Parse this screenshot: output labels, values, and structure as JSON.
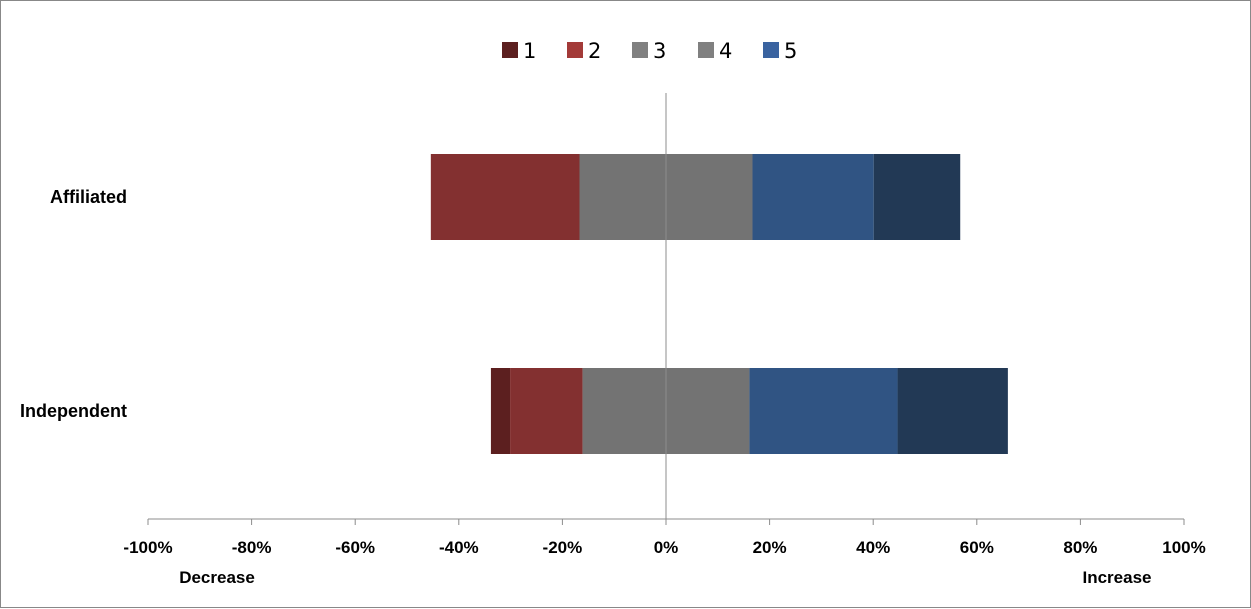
{
  "chart_data": {
    "type": "bar",
    "orientation": "horizontal",
    "stacked": "diverging",
    "categories": [
      "Affiliated",
      "Independent"
    ],
    "series": [
      {
        "name": "1",
        "color": "#5C1F1F",
        "side": "negative",
        "values": [
          0,
          3.7
        ]
      },
      {
        "name": "2",
        "color": "#833030",
        "side": "negative",
        "values": [
          28.7,
          14
        ]
      },
      {
        "name": "3",
        "color": "#737373",
        "side": "split",
        "values": [
          33.4,
          32.2
        ]
      },
      {
        "name": "4",
        "color": "#305483",
        "side": "positive",
        "values": [
          23.4,
          28.6
        ]
      },
      {
        "name": "5",
        "color": "#223955",
        "side": "positive",
        "values": [
          16.7,
          21.3
        ]
      }
    ],
    "legend_colors": [
      "#5C1F1F",
      "#A33A38",
      "#808080",
      "#808080",
      "#3A63A0"
    ],
    "xlim": [
      -100,
      100
    ],
    "x_ticks": [
      "-100%",
      "-80%",
      "-60%",
      "-40%",
      "-20%",
      "0%",
      "20%",
      "40%",
      "60%",
      "80%",
      "100%"
    ],
    "x_tick_values": [
      -100,
      -80,
      -60,
      -40,
      -20,
      0,
      20,
      40,
      60,
      80,
      100
    ],
    "x_end_labels": {
      "left": "Decrease",
      "right": "Increase"
    },
    "legend_position": "top",
    "grid": false
  }
}
